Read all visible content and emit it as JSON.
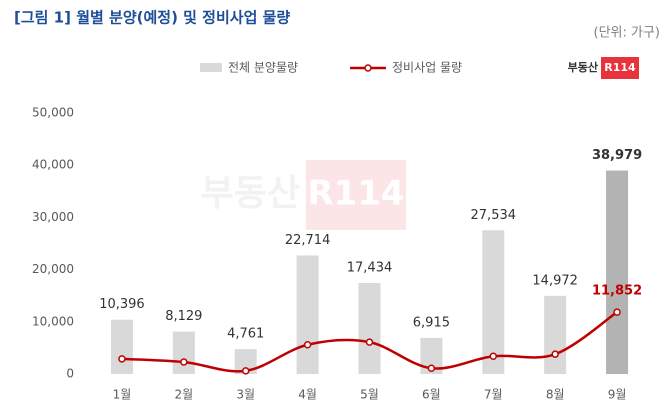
{
  "chart_data": {
    "type": "bar-line",
    "title": "[그림 1] 월별 분양(예정) 및 정비사업 물량",
    "subtitle": "(단위: 가구)",
    "logo": [
      "부동산",
      "R114"
    ],
    "categories": [
      "1월",
      "2월",
      "3월",
      "4월",
      "5월",
      "6월",
      "7월",
      "8월",
      "9월"
    ],
    "series": [
      {
        "name": "전체 분양물량",
        "type": "bar",
        "color": "#d9d9d9",
        "colors": [
          "#d9d9d9",
          "#d9d9d9",
          "#d9d9d9",
          "#d9d9d9",
          "#d9d9d9",
          "#d9d9d9",
          "#d9d9d9",
          "#d9d9d9",
          "#b3b3b3"
        ],
        "values": [
          10396,
          8129,
          4761,
          22714,
          17434,
          6915,
          27534,
          14972,
          38979
        ],
        "value_labels": [
          "10,396",
          "8,129",
          "4,761",
          "22,714",
          "17,434",
          "6,915",
          "27,534",
          "14,972",
          "38,979"
        ]
      },
      {
        "name": "정비사업 물량",
        "type": "line",
        "color": "#c00000",
        "values": [
          2900,
          2300,
          600,
          5600,
          6100,
          1100,
          3400,
          3800,
          11852
        ],
        "value_labels": [
          null,
          null,
          null,
          null,
          null,
          null,
          null,
          null,
          "11,852"
        ]
      }
    ],
    "ylim": [
      0,
      50000
    ],
    "yticks": [
      0,
      {
        "value": 10000,
        "label": "10,000"
      },
      {
        "value": 20000,
        "label": "20,000"
      },
      {
        "value": 30000,
        "label": "30,000"
      },
      {
        "value": 40000,
        "label": "40,000"
      },
      {
        "value": 50000,
        "label": "50,000"
      }
    ],
    "grid": false
  }
}
